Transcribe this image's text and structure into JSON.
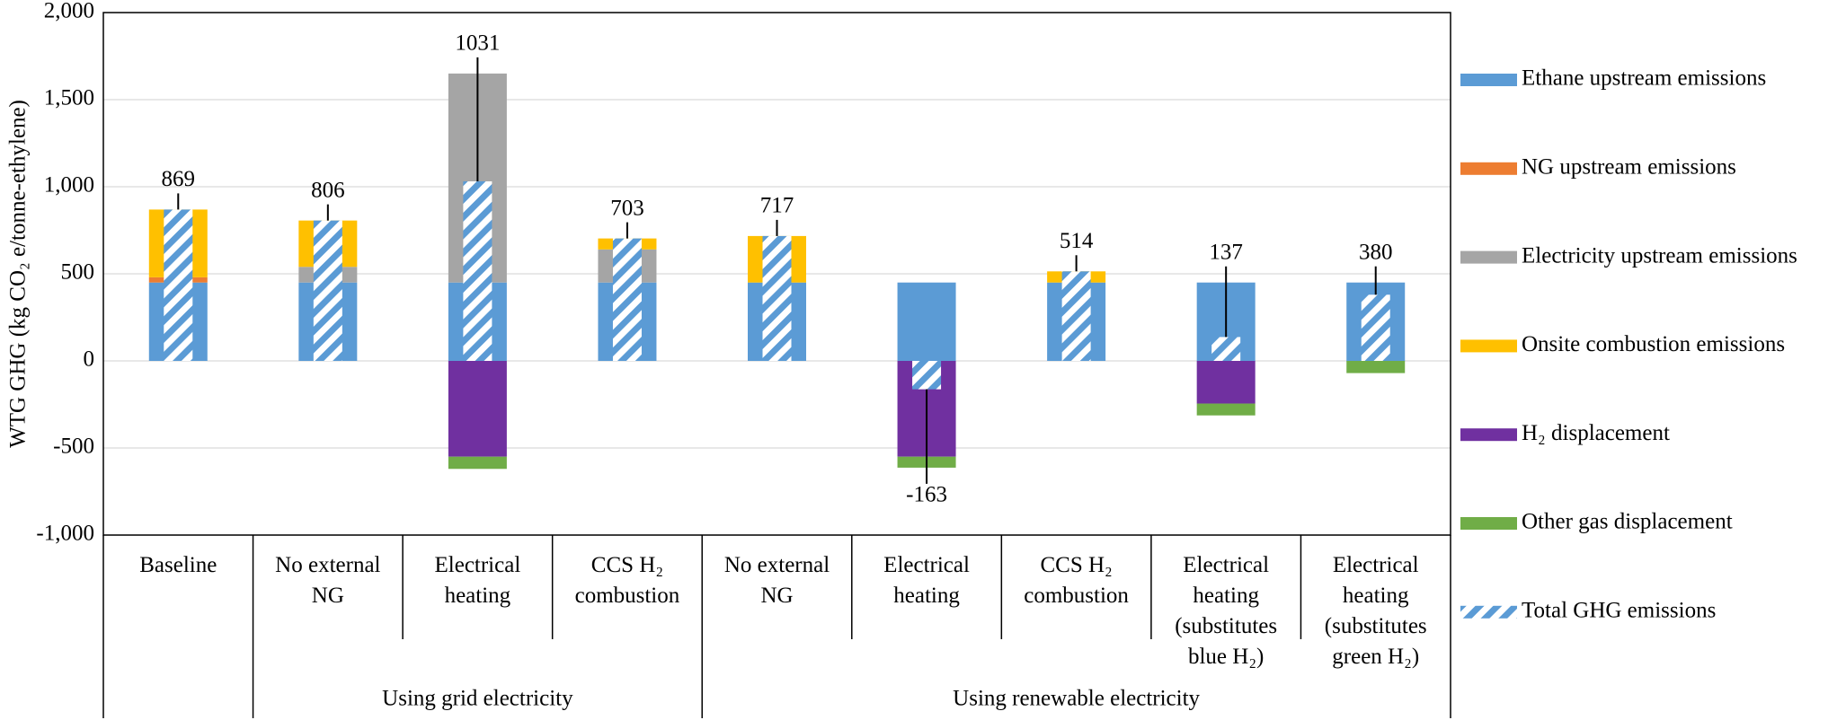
{
  "chart_data": {
    "type": "stacked_bar",
    "ylabel": "WTG GHG (kg CO₂ e/tonne-ethylene)",
    "categories": [
      "Baseline",
      "No external NG",
      "Electrical heating",
      "CCS H₂ combustion",
      "No external NG",
      "Electrical heating",
      "CCS H₂ combustion",
      "Electrical heating (substitutes blue H₂)",
      "Electrical heating (substitutes green H₂)"
    ],
    "groups": [
      {
        "label": "Using grid electricity",
        "start": 1,
        "end": 3
      },
      {
        "label": "Using renewable electricity",
        "start": 4,
        "end": 8
      }
    ],
    "series": [
      {
        "name": "Ethane upstream emissions",
        "color": "#5b9bd5",
        "values": [
          450,
          450,
          450,
          450,
          450,
          450,
          450,
          450,
          450
        ]
      },
      {
        "name": "NG upstream emissions",
        "color": "#ed7d31",
        "values": [
          30,
          0,
          0,
          0,
          0,
          0,
          0,
          0,
          0
        ]
      },
      {
        "name": "Electricity upstream emissions",
        "color": "#a5a5a5",
        "values": [
          0,
          90,
          1200,
          190,
          0,
          0,
          0,
          0,
          0
        ]
      },
      {
        "name": "Onsite combustion emissions",
        "color": "#ffc000",
        "values": [
          389,
          266,
          0,
          63,
          267,
          0,
          64,
          0,
          0
        ]
      },
      {
        "name": "H₂ displacement",
        "color": "#7030a0",
        "values": [
          0,
          0,
          -550,
          0,
          0,
          -550,
          0,
          -245,
          0
        ]
      },
      {
        "name": "Other gas displacement",
        "color": "#70ad47",
        "values": [
          0,
          0,
          -70,
          0,
          0,
          -63,
          0,
          -68,
          -70
        ]
      }
    ],
    "total": {
      "name": "Total GHG emissions",
      "color": "#5b9bd5",
      "values": [
        869,
        806,
        1031,
        703,
        717,
        -163,
        514,
        137,
        380
      ]
    },
    "ylim": [
      -1000,
      2000
    ],
    "yticks": [
      {
        "value": -1000,
        "label": "-1,000"
      },
      -500,
      0,
      500,
      {
        "value": 1000,
        "label": "1,000"
      },
      {
        "value": 1500,
        "label": "1,500"
      },
      {
        "value": 2000,
        "label": "2,000"
      }
    ],
    "grid": true,
    "legend": "right"
  }
}
